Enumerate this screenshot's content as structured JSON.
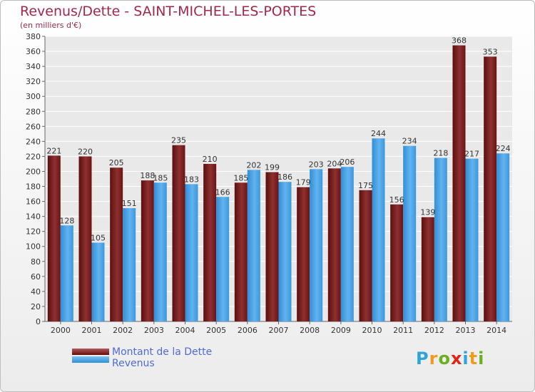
{
  "title": "Revenus/Dette - SAINT-MICHEL-LES-PORTES",
  "subtitle": "(en milliers d'€)",
  "logo": {
    "letters": [
      "P",
      "r",
      "o",
      "x",
      "i",
      "t",
      "i"
    ],
    "colors": [
      "#2fa4d8",
      "#f19b1e",
      "#6ab023",
      "#e2231a",
      "#2fa4d8",
      "#f19b1e",
      "#6ab023"
    ]
  },
  "colors": {
    "dette": "#7a1b1b",
    "revenus": "#3d9de2",
    "title": "#a0284c"
  },
  "chart_data": {
    "type": "bar",
    "categories": [
      "2000",
      "2001",
      "2002",
      "2003",
      "2004",
      "2005",
      "2006",
      "2007",
      "2008",
      "2009",
      "2010",
      "2011",
      "2012",
      "2013",
      "2014"
    ],
    "series": [
      {
        "name": "Montant de la Dette",
        "values": [
          221,
          220,
          205,
          188,
          235,
          210,
          185,
          199,
          179,
          204,
          175,
          156,
          139,
          368,
          353
        ]
      },
      {
        "name": "Revenus",
        "values": [
          128,
          105,
          151,
          185,
          183,
          166,
          202,
          186,
          203,
          206,
          244,
          234,
          218,
          217,
          224
        ]
      }
    ],
    "ylim": [
      0,
      380
    ],
    "yticks": [
      0,
      20,
      40,
      60,
      80,
      100,
      120,
      140,
      160,
      180,
      200,
      220,
      240,
      260,
      280,
      300,
      320,
      340,
      360,
      380
    ],
    "grid": true,
    "legend": "bottom-left"
  }
}
